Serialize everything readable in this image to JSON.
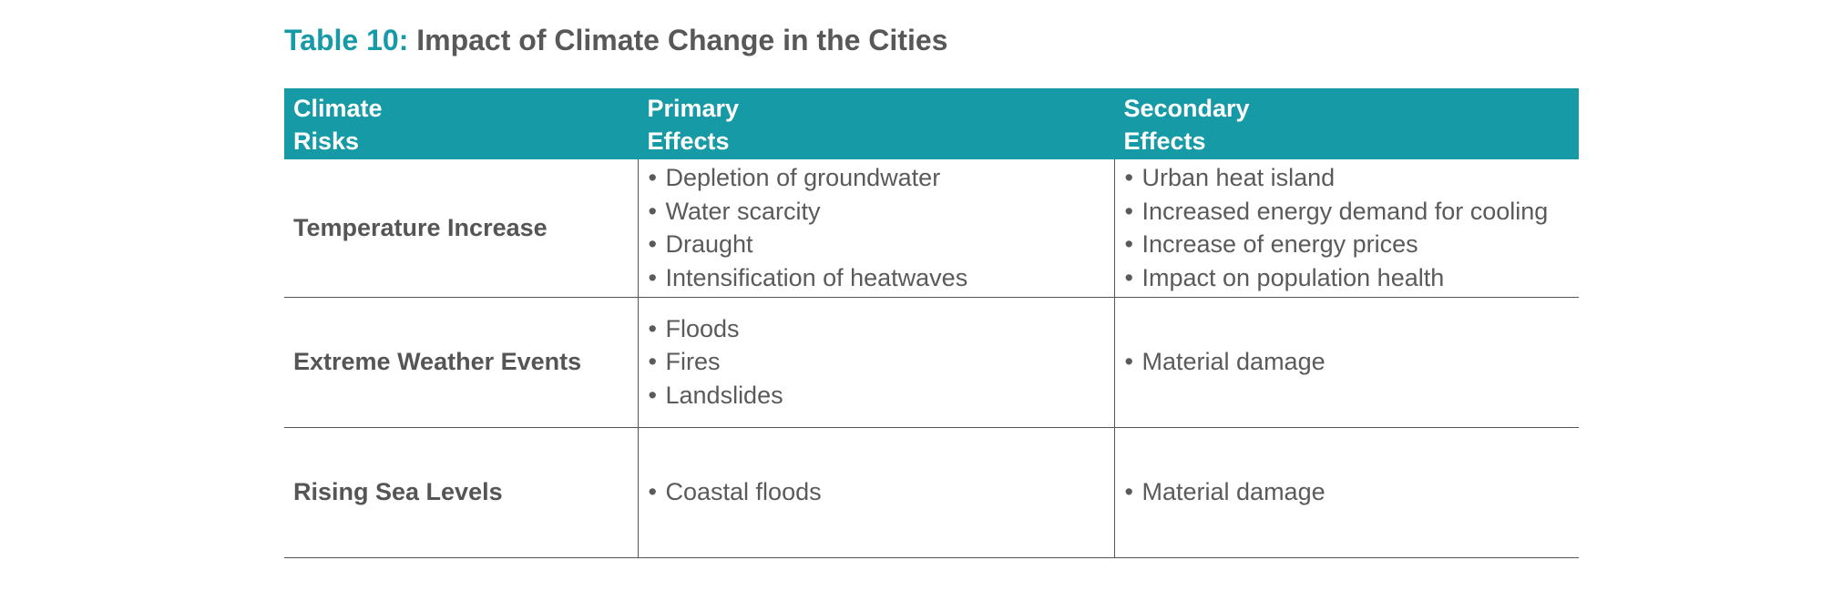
{
  "caption": {
    "label": "Table 10:",
    "title": "Impact of Climate Change in the Cities"
  },
  "table": {
    "headers": [
      [
        "Climate",
        "Risks"
      ],
      [
        "Primary",
        "Effects"
      ],
      [
        "Secondary",
        "Effects"
      ]
    ],
    "rows": [
      {
        "risk": "Temperature Increase",
        "primary": [
          "Depletion of groundwater",
          "Water scarcity",
          "Draught",
          "Intensification of heatwaves"
        ],
        "secondary": [
          "Urban heat island",
          "Increased energy demand for cooling",
          "Increase of energy prices",
          "Impact on population health"
        ]
      },
      {
        "risk": "Extreme Weather Events",
        "primary": [
          "Floods",
          "Fires",
          "Landslides"
        ],
        "secondary": [
          "Material damage"
        ]
      },
      {
        "risk": "Rising Sea Levels",
        "primary": [
          "Coastal floods"
        ],
        "secondary": [
          "Material damage"
        ]
      }
    ]
  },
  "colors": {
    "accent": "#169aa6",
    "text": "#555555",
    "header_text": "#ffffff"
  }
}
